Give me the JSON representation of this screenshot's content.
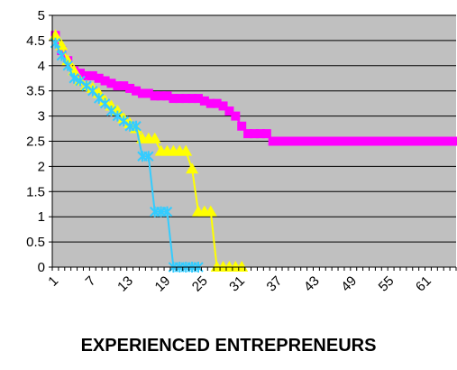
{
  "chart_data": {
    "type": "line",
    "title": "EXPERIENCED ENTREPRENEURS",
    "xlabel": "",
    "ylabel": "",
    "x_range": [
      1,
      65
    ],
    "x_tick_labels": [
      "1",
      "7",
      "13",
      "19",
      "25",
      "31",
      "37",
      "43",
      "49",
      "55",
      "61"
    ],
    "ylim": [
      0,
      5
    ],
    "y_tick_labels": [
      "0",
      "0.5",
      "1",
      "1.5",
      "2",
      "2.5",
      "3",
      "3.5",
      "4",
      "4.5",
      "5"
    ],
    "grid": "horizontal",
    "plot_background": "#c0c0c0",
    "legend": "none",
    "series": [
      {
        "color": "#ff00ff",
        "marker": "square",
        "x": [
          1,
          2,
          3,
          4,
          5,
          6,
          7,
          8,
          9,
          10,
          11,
          12,
          13,
          14,
          15,
          16,
          17,
          18,
          19,
          20,
          21,
          22,
          23,
          24,
          25,
          26,
          27,
          28,
          29,
          30,
          31,
          32,
          33,
          34,
          35,
          36,
          37,
          38,
          39,
          40,
          41,
          42,
          43,
          44,
          45,
          46,
          47,
          48,
          49,
          50,
          51,
          52,
          53,
          54,
          55,
          56,
          57,
          58,
          59,
          60,
          61,
          62,
          63,
          64,
          65
        ],
        "y": [
          4.6,
          4.3,
          4.1,
          3.9,
          3.85,
          3.8,
          3.8,
          3.75,
          3.7,
          3.65,
          3.6,
          3.6,
          3.55,
          3.5,
          3.45,
          3.45,
          3.4,
          3.4,
          3.4,
          3.35,
          3.35,
          3.35,
          3.35,
          3.35,
          3.3,
          3.25,
          3.25,
          3.2,
          3.1,
          3.0,
          2.8,
          2.65,
          2.65,
          2.65,
          2.65,
          2.5,
          2.5,
          2.5,
          2.5,
          2.5,
          2.5,
          2.5,
          2.5,
          2.5,
          2.5,
          2.5,
          2.5,
          2.5,
          2.5,
          2.5,
          2.5,
          2.5,
          2.5,
          2.5,
          2.5,
          2.5,
          2.5,
          2.5,
          2.5,
          2.5,
          2.5,
          2.5,
          2.5,
          2.5,
          2.5
        ]
      },
      {
        "color": "#ffff00",
        "marker": "triangle",
        "x": [
          1,
          2,
          3,
          4,
          5,
          6,
          7,
          8,
          9,
          10,
          11,
          12,
          13,
          14,
          15,
          16,
          17,
          18,
          19,
          20,
          21,
          22,
          23,
          24,
          25,
          26,
          27,
          28,
          29,
          30,
          31
        ],
        "y": [
          4.6,
          4.4,
          4.1,
          3.9,
          3.7,
          3.6,
          3.55,
          3.45,
          3.3,
          3.2,
          3.1,
          2.95,
          2.85,
          2.75,
          2.55,
          2.55,
          2.55,
          2.3,
          2.3,
          2.3,
          2.3,
          2.3,
          1.95,
          1.1,
          1.1,
          1.1,
          0,
          0,
          0,
          0,
          0
        ]
      },
      {
        "color": "#33ccff",
        "marker": "x",
        "x": [
          1,
          2,
          3,
          4,
          5,
          6,
          7,
          8,
          9,
          10,
          11,
          12,
          13,
          14,
          15,
          16,
          17,
          18,
          19,
          20,
          21,
          22,
          23,
          24
        ],
        "y": [
          4.45,
          4.2,
          4.0,
          3.75,
          3.7,
          3.6,
          3.5,
          3.35,
          3.25,
          3.1,
          3.0,
          2.9,
          2.8,
          2.8,
          2.2,
          2.2,
          1.1,
          1.1,
          1.1,
          0,
          0,
          0,
          0,
          0
        ]
      }
    ]
  }
}
